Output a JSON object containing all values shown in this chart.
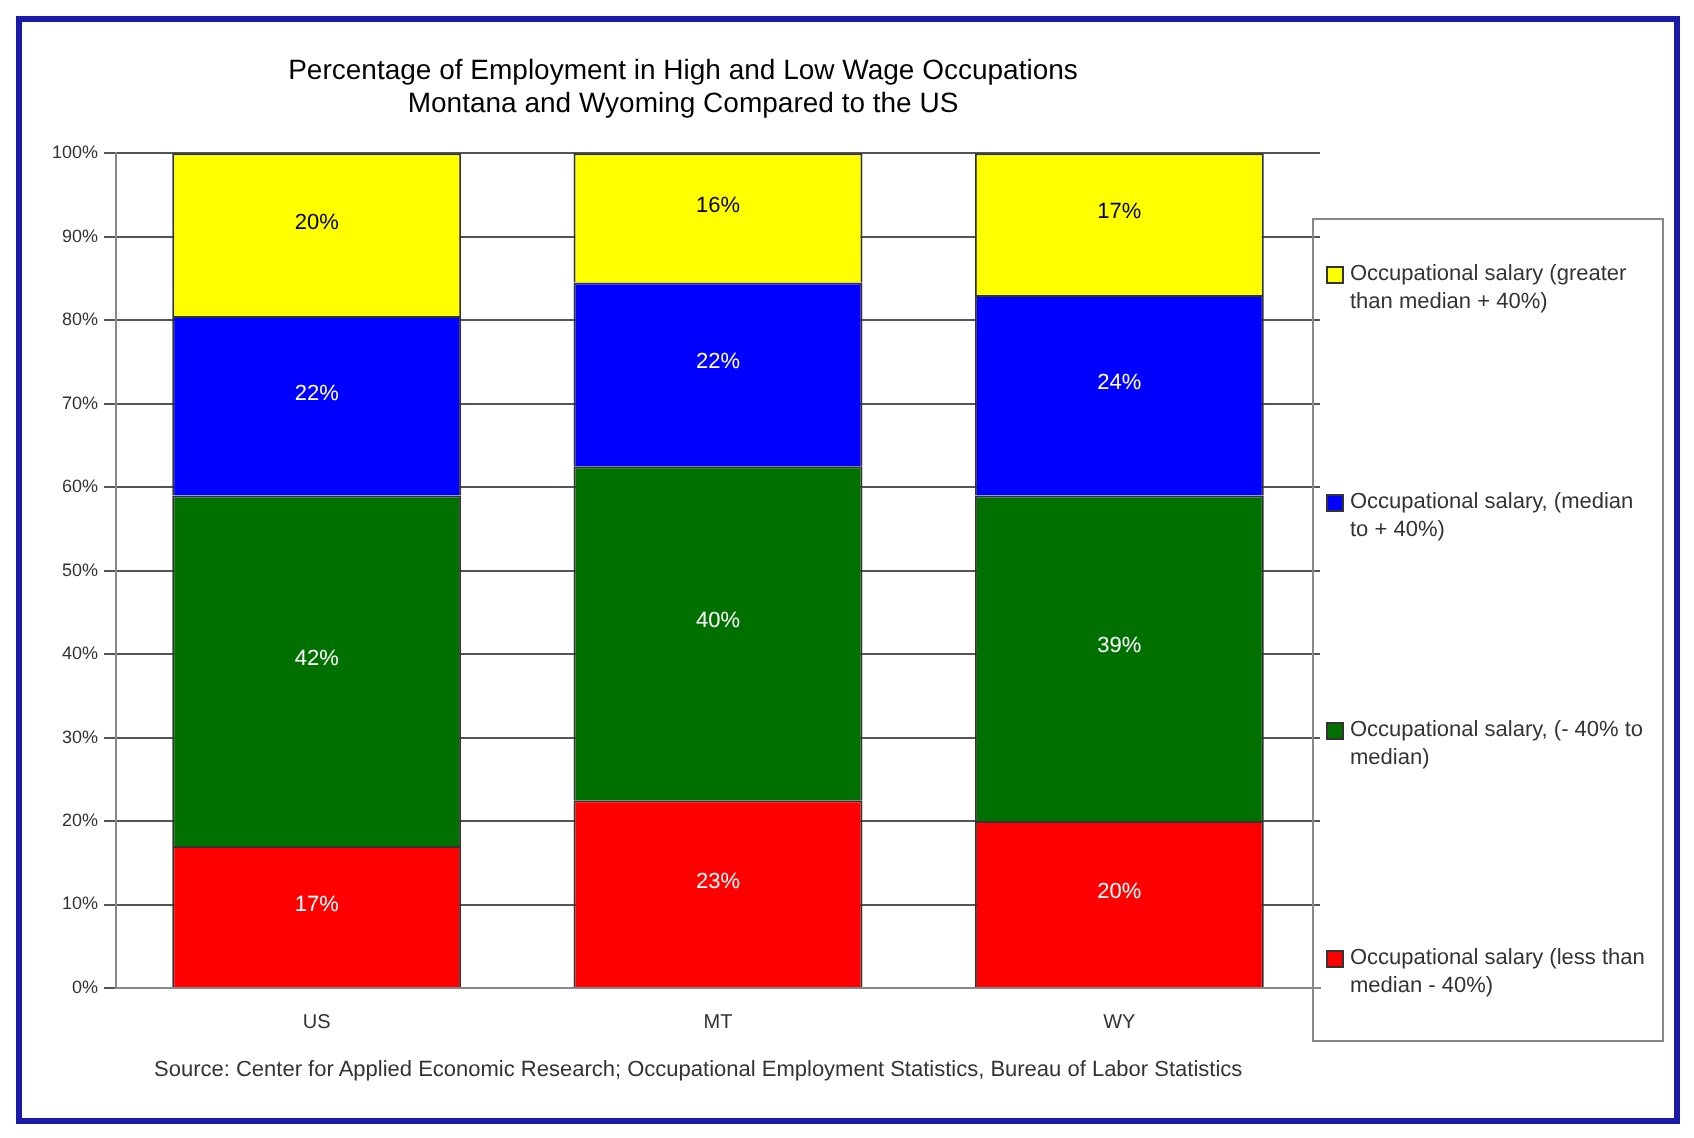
{
  "chart_data": {
    "type": "bar",
    "stacked": true,
    "title": "Percentage of Employment in High and Low Wage Occupations\nMontana and Wyoming Compared to the US",
    "categories": [
      "US",
      "MT",
      "WY"
    ],
    "series": [
      {
        "name": "Occupational salary (less than median - 40%)",
        "color": "#ff0000",
        "values": [
          17,
          22.5,
          20
        ],
        "value_labels": [
          "17%",
          "23%",
          "20%"
        ]
      },
      {
        "name": "Occupational salary, (- 40% to median)",
        "color": "#007000",
        "values": [
          42,
          40,
          39
        ],
        "value_labels": [
          "42%",
          "40%",
          "39%"
        ]
      },
      {
        "name": "Occupational salary, (median to + 40%)",
        "color": "#0000ff",
        "values": [
          21.5,
          22,
          24
        ],
        "value_labels": [
          "22%",
          "22%",
          "24%"
        ]
      },
      {
        "name": "Occupational salary (greater than median + 40%)",
        "color": "#ffff00",
        "values": [
          19.5,
          15.5,
          17
        ],
        "value_labels": [
          "20%",
          "16%",
          "17%"
        ]
      }
    ],
    "ylim": [
      0,
      100
    ],
    "yticks": [
      {
        "value": 0,
        "label": "0%"
      },
      {
        "value": 10,
        "label": "10%"
      },
      {
        "value": 20,
        "label": "20%"
      },
      {
        "value": 30,
        "label": "30%"
      },
      {
        "value": 40,
        "label": "40%"
      },
      {
        "value": 50,
        "label": "50%"
      },
      {
        "value": 60,
        "label": "60%"
      },
      {
        "value": 70,
        "label": "70%"
      },
      {
        "value": 80,
        "label": "80%"
      },
      {
        "value": 90,
        "label": "90%"
      },
      {
        "value": 100,
        "label": "100%"
      }
    ],
    "grid": "y",
    "legend": "right",
    "annotations": [
      "Source: Center for Applied Economic Research; Occupational Employment Statistics, Bureau of Labor Statistics"
    ]
  }
}
